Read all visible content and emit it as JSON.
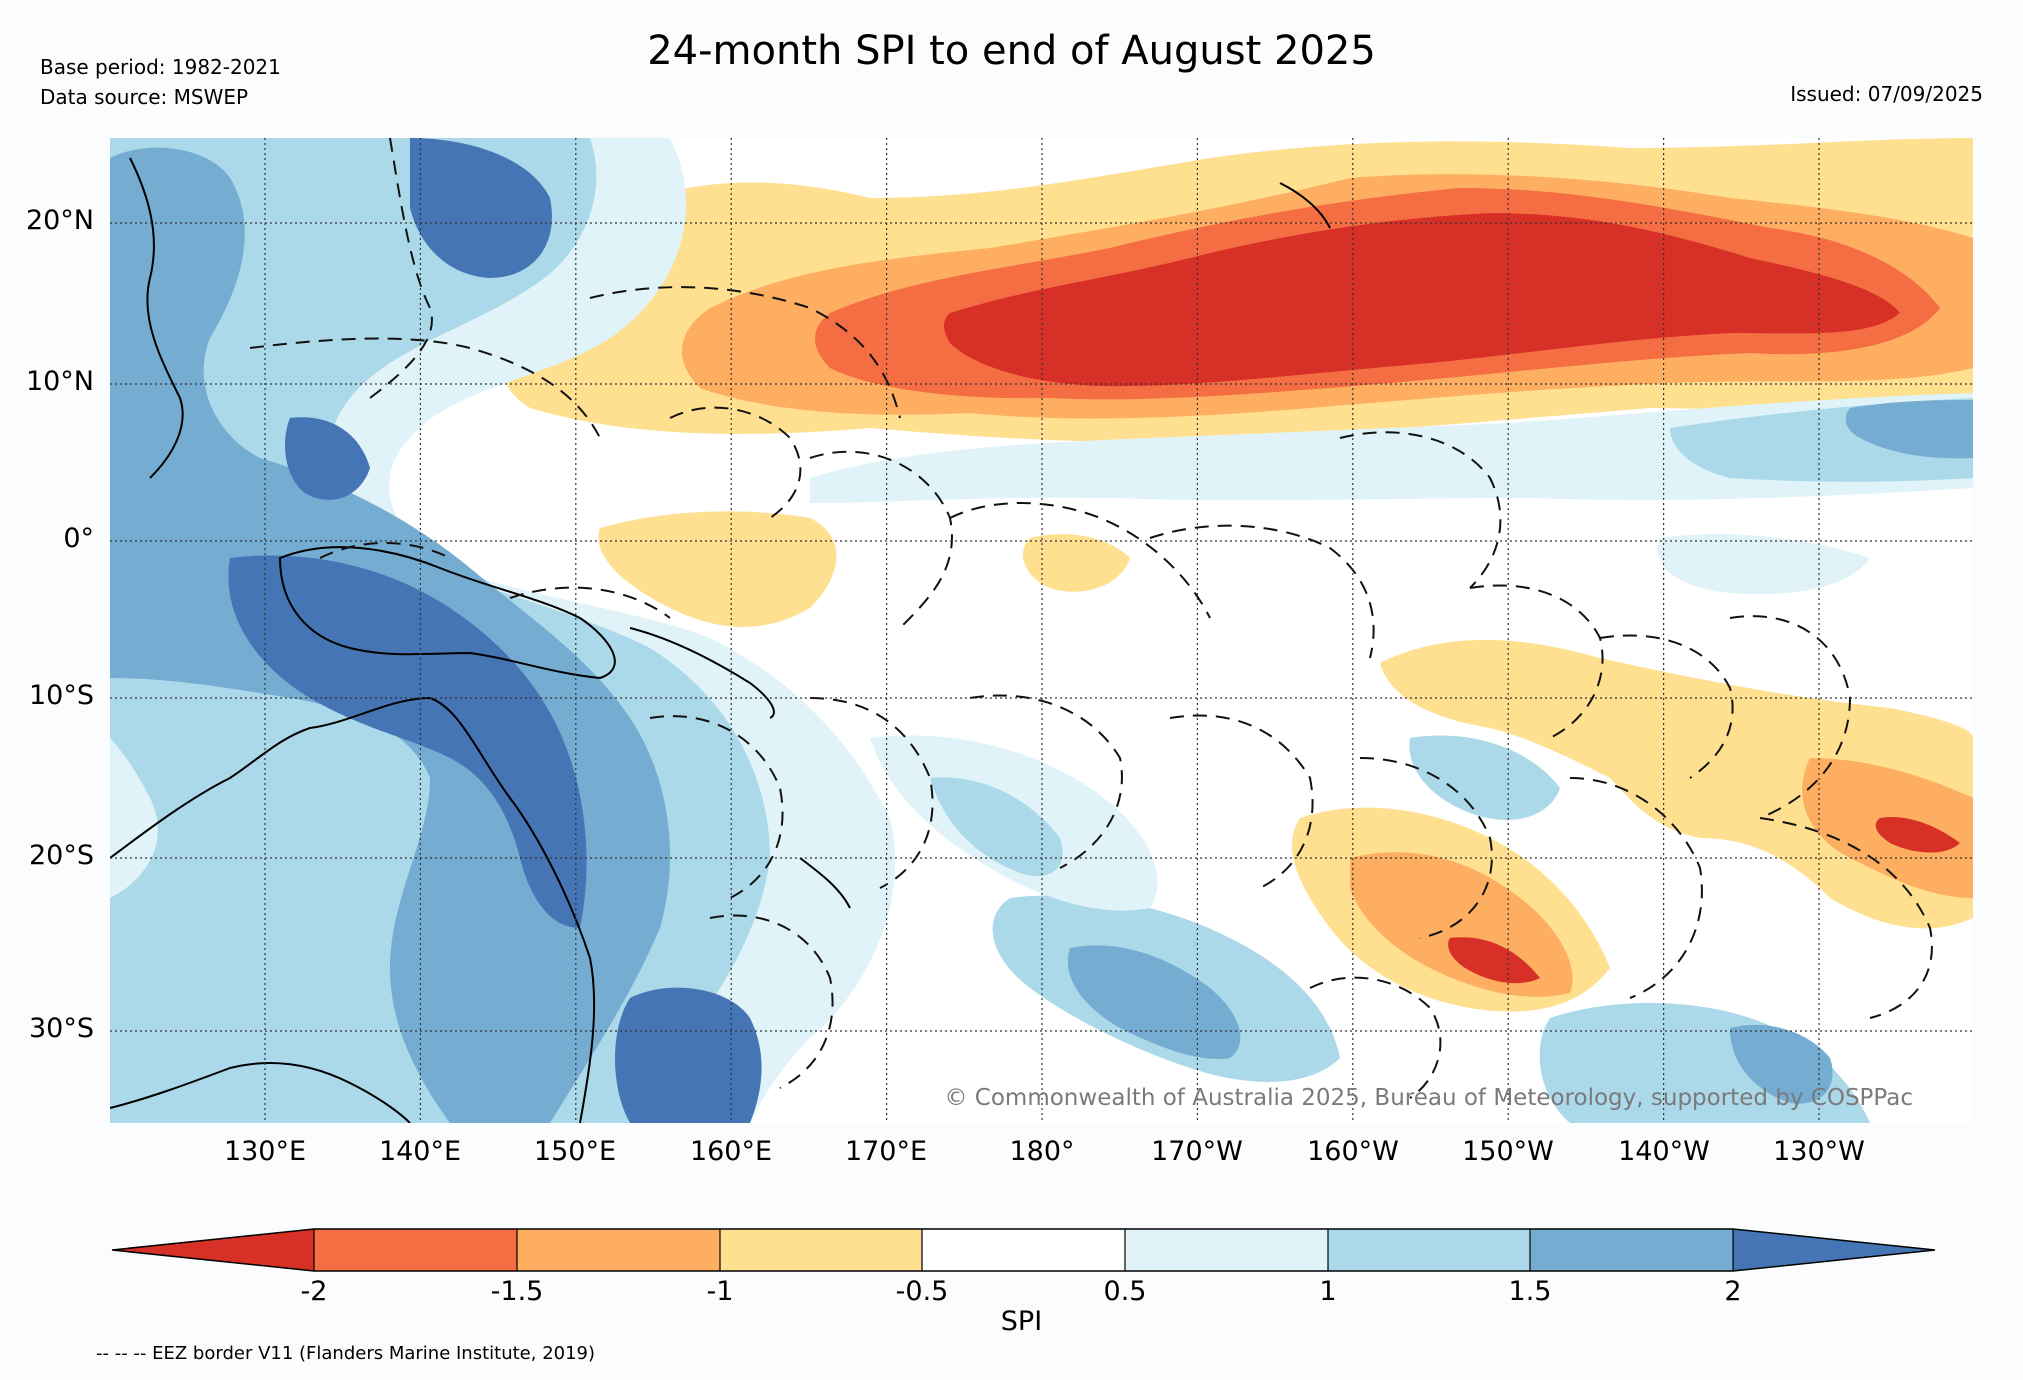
{
  "header": {
    "title": "24-month SPI to end of August 2025",
    "base_period": "Base period: 1982-2021",
    "data_source": "Data source: MSWEP",
    "issued": "Issued: 07/09/2025"
  },
  "map": {
    "copyright": "© Commonwealth of Australia 2025, Bureau of Meteorology, supported by COSPPac",
    "lat_labels": [
      "20°N",
      "10°N",
      "0°",
      "10°S",
      "20°S",
      "30°S"
    ],
    "lon_labels": [
      "130°E",
      "140°E",
      "150°E",
      "160°E",
      "170°E",
      "180°",
      "170°W",
      "160°W",
      "150°W",
      "140°W",
      "130°W"
    ],
    "regions": {
      "dry_belt_north": "extremely dry band across North Pacific ~10–20°N, 175°E–125°W",
      "wet_maritime_continent": "very wet over Papua New Guinea and eastern Australia",
      "dry_south_east": "dry over French Polynesia region ~15–30°S"
    }
  },
  "colorbar": {
    "label": "SPI",
    "ticks": [
      "-2",
      "-1.5",
      "-1",
      "-0.5",
      "0.5",
      "1",
      "1.5",
      "2"
    ],
    "colors": {
      "lt_-2": "#d73027",
      "-2_-1.5": "#f46d43",
      "-1.5_-1": "#fdae61",
      "-1_-0.5": "#fee090",
      "-0.5_0.5": "#ffffff",
      "0.5_1": "#e0f3f8",
      "1_1.5": "#abd9e9",
      "1.5_2": "#74add1",
      "gt_2": "#4575b4"
    }
  },
  "footnote": "-- -- -- EEZ border V11 (Flanders Marine Institute, 2019)"
}
